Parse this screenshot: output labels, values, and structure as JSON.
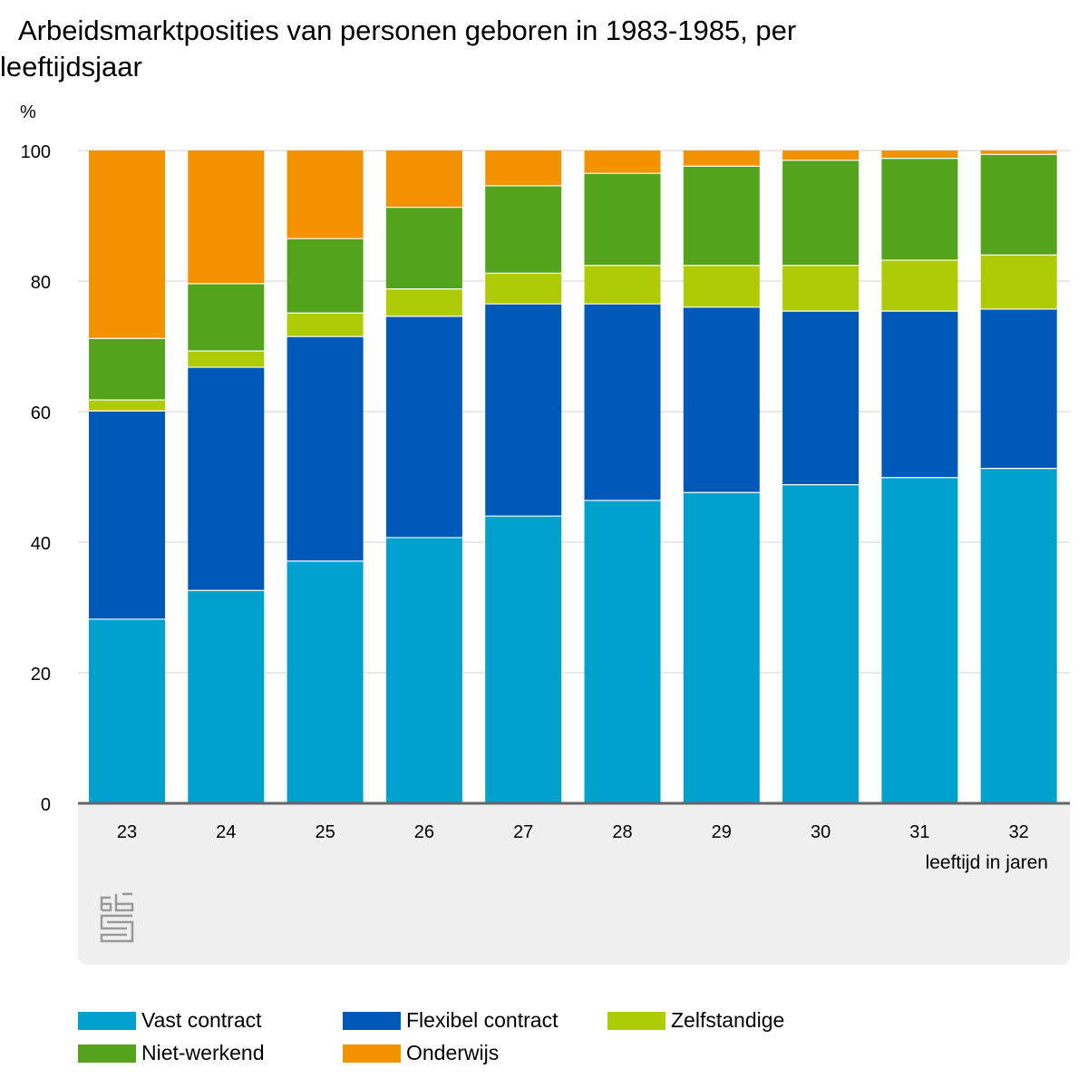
{
  "chart_data": {
    "type": "bar",
    "stacked": true,
    "title": "Arbeidsmarktposities van personen geboren in 1983-1985, per leeftijdsjaar",
    "ylabel": "%",
    "xlabel": "leeftijd in jaren",
    "ylim": [
      0,
      100
    ],
    "yticks": [
      0,
      20,
      40,
      60,
      80,
      100
    ],
    "grid": true,
    "legend_position": "bottom",
    "categories": [
      "23",
      "24",
      "25",
      "26",
      "27",
      "28",
      "29",
      "30",
      "31",
      "32"
    ],
    "series": [
      {
        "name": "Vast contract",
        "color": "#00a1cd",
        "values": [
          28.2,
          32.6,
          37.1,
          40.7,
          44.0,
          46.4,
          47.6,
          48.8,
          49.9,
          51.3
        ]
      },
      {
        "name": "Flexibel contract",
        "color": "#0058b8",
        "values": [
          31.9,
          34.2,
          34.4,
          33.9,
          32.5,
          30.1,
          28.4,
          26.6,
          25.5,
          24.4
        ]
      },
      {
        "name": "Zelfstandige",
        "color": "#afcb05",
        "values": [
          1.7,
          2.5,
          3.6,
          4.2,
          4.7,
          5.9,
          6.4,
          7.0,
          7.8,
          8.3
        ]
      },
      {
        "name": "Niet-werkend",
        "color": "#53a31d",
        "values": [
          9.4,
          10.3,
          11.4,
          12.5,
          13.4,
          14.1,
          15.2,
          16.1,
          15.6,
          15.4
        ]
      },
      {
        "name": "Onderwijs",
        "color": "#f39200",
        "values": [
          28.8,
          20.4,
          13.5,
          8.7,
          5.4,
          3.5,
          2.4,
          1.5,
          1.2,
          0.6
        ]
      }
    ],
    "logo": "cbs"
  }
}
